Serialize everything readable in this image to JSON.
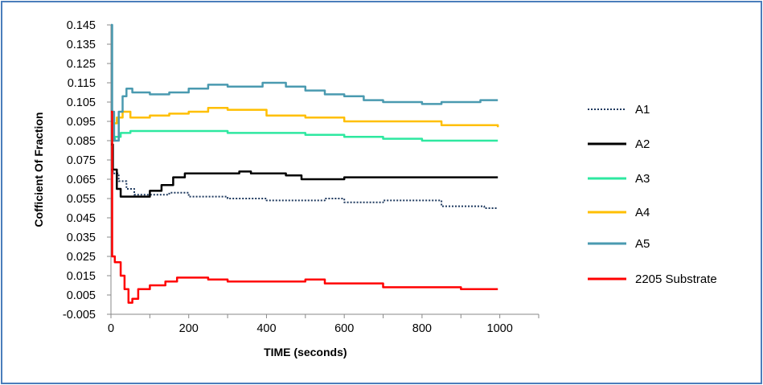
{
  "chart_data": {
    "type": "line",
    "title": "",
    "xlabel": "TIME (seconds)",
    "ylabel": "Cofficient Of Fraction",
    "xlim": [
      0,
      1100
    ],
    "ylim": [
      -0.005,
      0.145
    ],
    "x_ticks": [
      "0",
      "200",
      "400",
      "600",
      "800",
      "1000"
    ],
    "y_ticks": [
      "0.145",
      "0.135",
      "0.125",
      "0.115",
      "0.105",
      "0.095",
      "0.085",
      "0.075",
      "0.065",
      "0.055",
      "0.045",
      "0.035",
      "0.025",
      "0.015",
      "0.005",
      "-0.005"
    ],
    "grid": false,
    "legend_position": "right",
    "series": [
      {
        "name": "A1",
        "color": "#1f3a5f",
        "dash": "dotted",
        "points": [
          [
            0,
            0.07
          ],
          [
            5,
            0.068
          ],
          [
            20,
            0.064
          ],
          [
            40,
            0.06
          ],
          [
            60,
            0.057
          ],
          [
            100,
            0.057
          ],
          [
            150,
            0.058
          ],
          [
            200,
            0.056
          ],
          [
            300,
            0.055
          ],
          [
            400,
            0.054
          ],
          [
            500,
            0.054
          ],
          [
            550,
            0.055
          ],
          [
            600,
            0.053
          ],
          [
            700,
            0.054
          ],
          [
            780,
            0.054
          ],
          [
            850,
            0.051
          ],
          [
            900,
            0.051
          ],
          [
            960,
            0.05
          ],
          [
            995,
            0.05
          ]
        ]
      },
      {
        "name": "A2",
        "color": "#000000",
        "dash": "solid",
        "points": [
          [
            0,
            0.083
          ],
          [
            5,
            0.07
          ],
          [
            15,
            0.06
          ],
          [
            25,
            0.056
          ],
          [
            60,
            0.056
          ],
          [
            100,
            0.059
          ],
          [
            130,
            0.062
          ],
          [
            160,
            0.066
          ],
          [
            190,
            0.068
          ],
          [
            300,
            0.068
          ],
          [
            330,
            0.069
          ],
          [
            360,
            0.068
          ],
          [
            450,
            0.067
          ],
          [
            490,
            0.065
          ],
          [
            520,
            0.065
          ],
          [
            600,
            0.066
          ],
          [
            700,
            0.066
          ],
          [
            800,
            0.066
          ],
          [
            995,
            0.066
          ]
        ]
      },
      {
        "name": "A3",
        "color": "#2ee8a0",
        "dash": "solid",
        "points": [
          [
            0,
            0.085
          ],
          [
            10,
            0.087
          ],
          [
            25,
            0.089
          ],
          [
            50,
            0.09
          ],
          [
            150,
            0.09
          ],
          [
            300,
            0.089
          ],
          [
            500,
            0.088
          ],
          [
            600,
            0.087
          ],
          [
            700,
            0.086
          ],
          [
            800,
            0.085
          ],
          [
            995,
            0.085
          ]
        ]
      },
      {
        "name": "A4",
        "color": "#ffbf00",
        "dash": "solid",
        "points": [
          [
            0,
            0.094
          ],
          [
            15,
            0.097
          ],
          [
            30,
            0.1
          ],
          [
            50,
            0.097
          ],
          [
            100,
            0.098
          ],
          [
            150,
            0.099
          ],
          [
            200,
            0.1
          ],
          [
            250,
            0.102
          ],
          [
            300,
            0.101
          ],
          [
            400,
            0.098
          ],
          [
            500,
            0.097
          ],
          [
            600,
            0.095
          ],
          [
            750,
            0.095
          ],
          [
            850,
            0.093
          ],
          [
            995,
            0.092
          ]
        ]
      },
      {
        "name": "A5",
        "color": "#4a9ab0",
        "dash": "solid",
        "points": [
          [
            0,
            0.145
          ],
          [
            3,
            0.1
          ],
          [
            8,
            0.085
          ],
          [
            20,
            0.1
          ],
          [
            30,
            0.108
          ],
          [
            40,
            0.112
          ],
          [
            55,
            0.11
          ],
          [
            100,
            0.109
          ],
          [
            150,
            0.11
          ],
          [
            200,
            0.112
          ],
          [
            250,
            0.114
          ],
          [
            300,
            0.113
          ],
          [
            350,
            0.113
          ],
          [
            390,
            0.115
          ],
          [
            450,
            0.113
          ],
          [
            500,
            0.111
          ],
          [
            550,
            0.109
          ],
          [
            600,
            0.108
          ],
          [
            650,
            0.106
          ],
          [
            700,
            0.105
          ],
          [
            750,
            0.105
          ],
          [
            800,
            0.104
          ],
          [
            850,
            0.105
          ],
          [
            950,
            0.106
          ],
          [
            995,
            0.106
          ]
        ]
      },
      {
        "name": "2205 Substrate",
        "color": "#ff0000",
        "dash": "solid",
        "points": [
          [
            0,
            0.1
          ],
          [
            3,
            0.025
          ],
          [
            10,
            0.022
          ],
          [
            25,
            0.015
          ],
          [
            35,
            0.008
          ],
          [
            45,
            0.001
          ],
          [
            55,
            0.003
          ],
          [
            70,
            0.008
          ],
          [
            100,
            0.01
          ],
          [
            140,
            0.012
          ],
          [
            170,
            0.014
          ],
          [
            200,
            0.014
          ],
          [
            250,
            0.013
          ],
          [
            300,
            0.012
          ],
          [
            400,
            0.012
          ],
          [
            500,
            0.013
          ],
          [
            550,
            0.011
          ],
          [
            650,
            0.011
          ],
          [
            700,
            0.009
          ],
          [
            800,
            0.009
          ],
          [
            900,
            0.008
          ],
          [
            995,
            0.008
          ]
        ]
      }
    ]
  }
}
